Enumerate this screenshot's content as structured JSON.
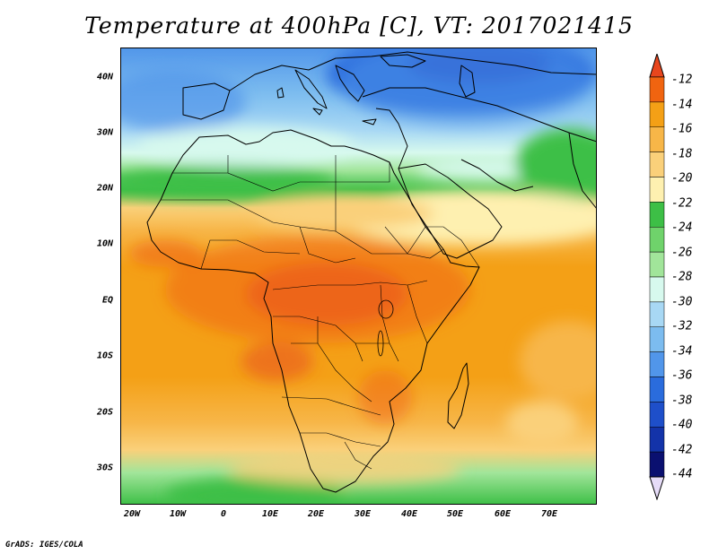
{
  "title": "Temperature at 400hPa [C], VT: 2017021415",
  "credit": "GrADS: IGES/COLA",
  "map": {
    "lon_range": [
      -23,
      80
    ],
    "lat_range": [
      -36,
      45
    ],
    "lat_ticks": [
      "40N",
      "30N",
      "20N",
      "10N",
      "EQ",
      "10S",
      "20S",
      "30S"
    ],
    "lon_ticks": [
      "20W",
      "10W",
      "0",
      "10E",
      "20E",
      "30E",
      "40E",
      "50E",
      "60E",
      "70E"
    ],
    "coastline_color": "#000000"
  },
  "legend": {
    "labels": [
      "-12",
      "-14",
      "-16",
      "-18",
      "-20",
      "-22",
      "-24",
      "-26",
      "-28",
      "-30",
      "-32",
      "-34",
      "-36",
      "-38",
      "-40",
      "-42",
      "-44"
    ],
    "colors": [
      "#e8461d",
      "#f06410",
      "#f4a016",
      "#f7b648",
      "#fad07a",
      "#fef0b0",
      "#3dbf46",
      "#6fd36b",
      "#a1e59a",
      "#d7f9ee",
      "#a8d8f4",
      "#7cbcef",
      "#5196ea",
      "#2a6cdd",
      "#1e4fca",
      "#1333a9",
      "#0a1070"
    ],
    "overflow_high": "#e8461d",
    "overflow_low": "#e6dcf8"
  }
}
